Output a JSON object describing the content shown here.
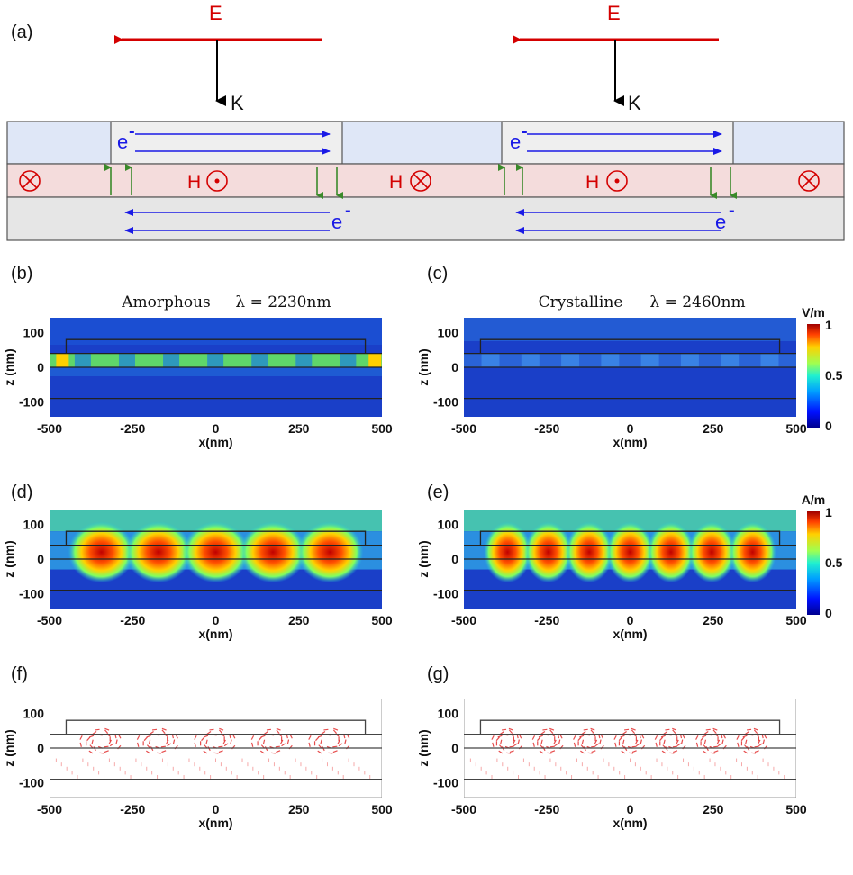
{
  "panel_a": {
    "label": "(a)",
    "e_field": "E",
    "k_vector": "K",
    "h_field": "H",
    "electron": "e",
    "electron_sup": "-",
    "cross_symbol": "⊗",
    "dot_symbol": "⊙"
  },
  "panels": {
    "b": {
      "label": "(b)",
      "title_material": "Amorphous",
      "title_lambda": "λ = 2230nm"
    },
    "c": {
      "label": "(c)",
      "title_material": "Crystalline",
      "title_lambda": "λ = 2460nm"
    },
    "d": {
      "label": "(d)"
    },
    "e": {
      "label": "(e)"
    },
    "f": {
      "label": "(f)"
    },
    "g": {
      "label": "(g)"
    }
  },
  "axes": {
    "xlabel": "x(nm)",
    "ylabel": "z (nm)",
    "x_ticks": [
      "-500",
      "-250",
      "0",
      "250",
      "500"
    ],
    "z_ticks": [
      "100",
      "0",
      "-100"
    ]
  },
  "colorbars": {
    "electric": {
      "unit": "V/m",
      "ticks": [
        "1",
        "0.5",
        "0"
      ]
    },
    "magnetic": {
      "unit": "A/m",
      "ticks": [
        "1",
        "0.5",
        "0"
      ]
    }
  },
  "colors": {
    "e_field": "#d40000",
    "electron_current": "#1a1ae6",
    "current_arrow": "#3a8a2a",
    "top_layer": "#dfe7f7",
    "mid_layer": "#f4dcdc",
    "bottom_layer": "#e6e6e6",
    "map_background": "#1a3fc8"
  }
}
